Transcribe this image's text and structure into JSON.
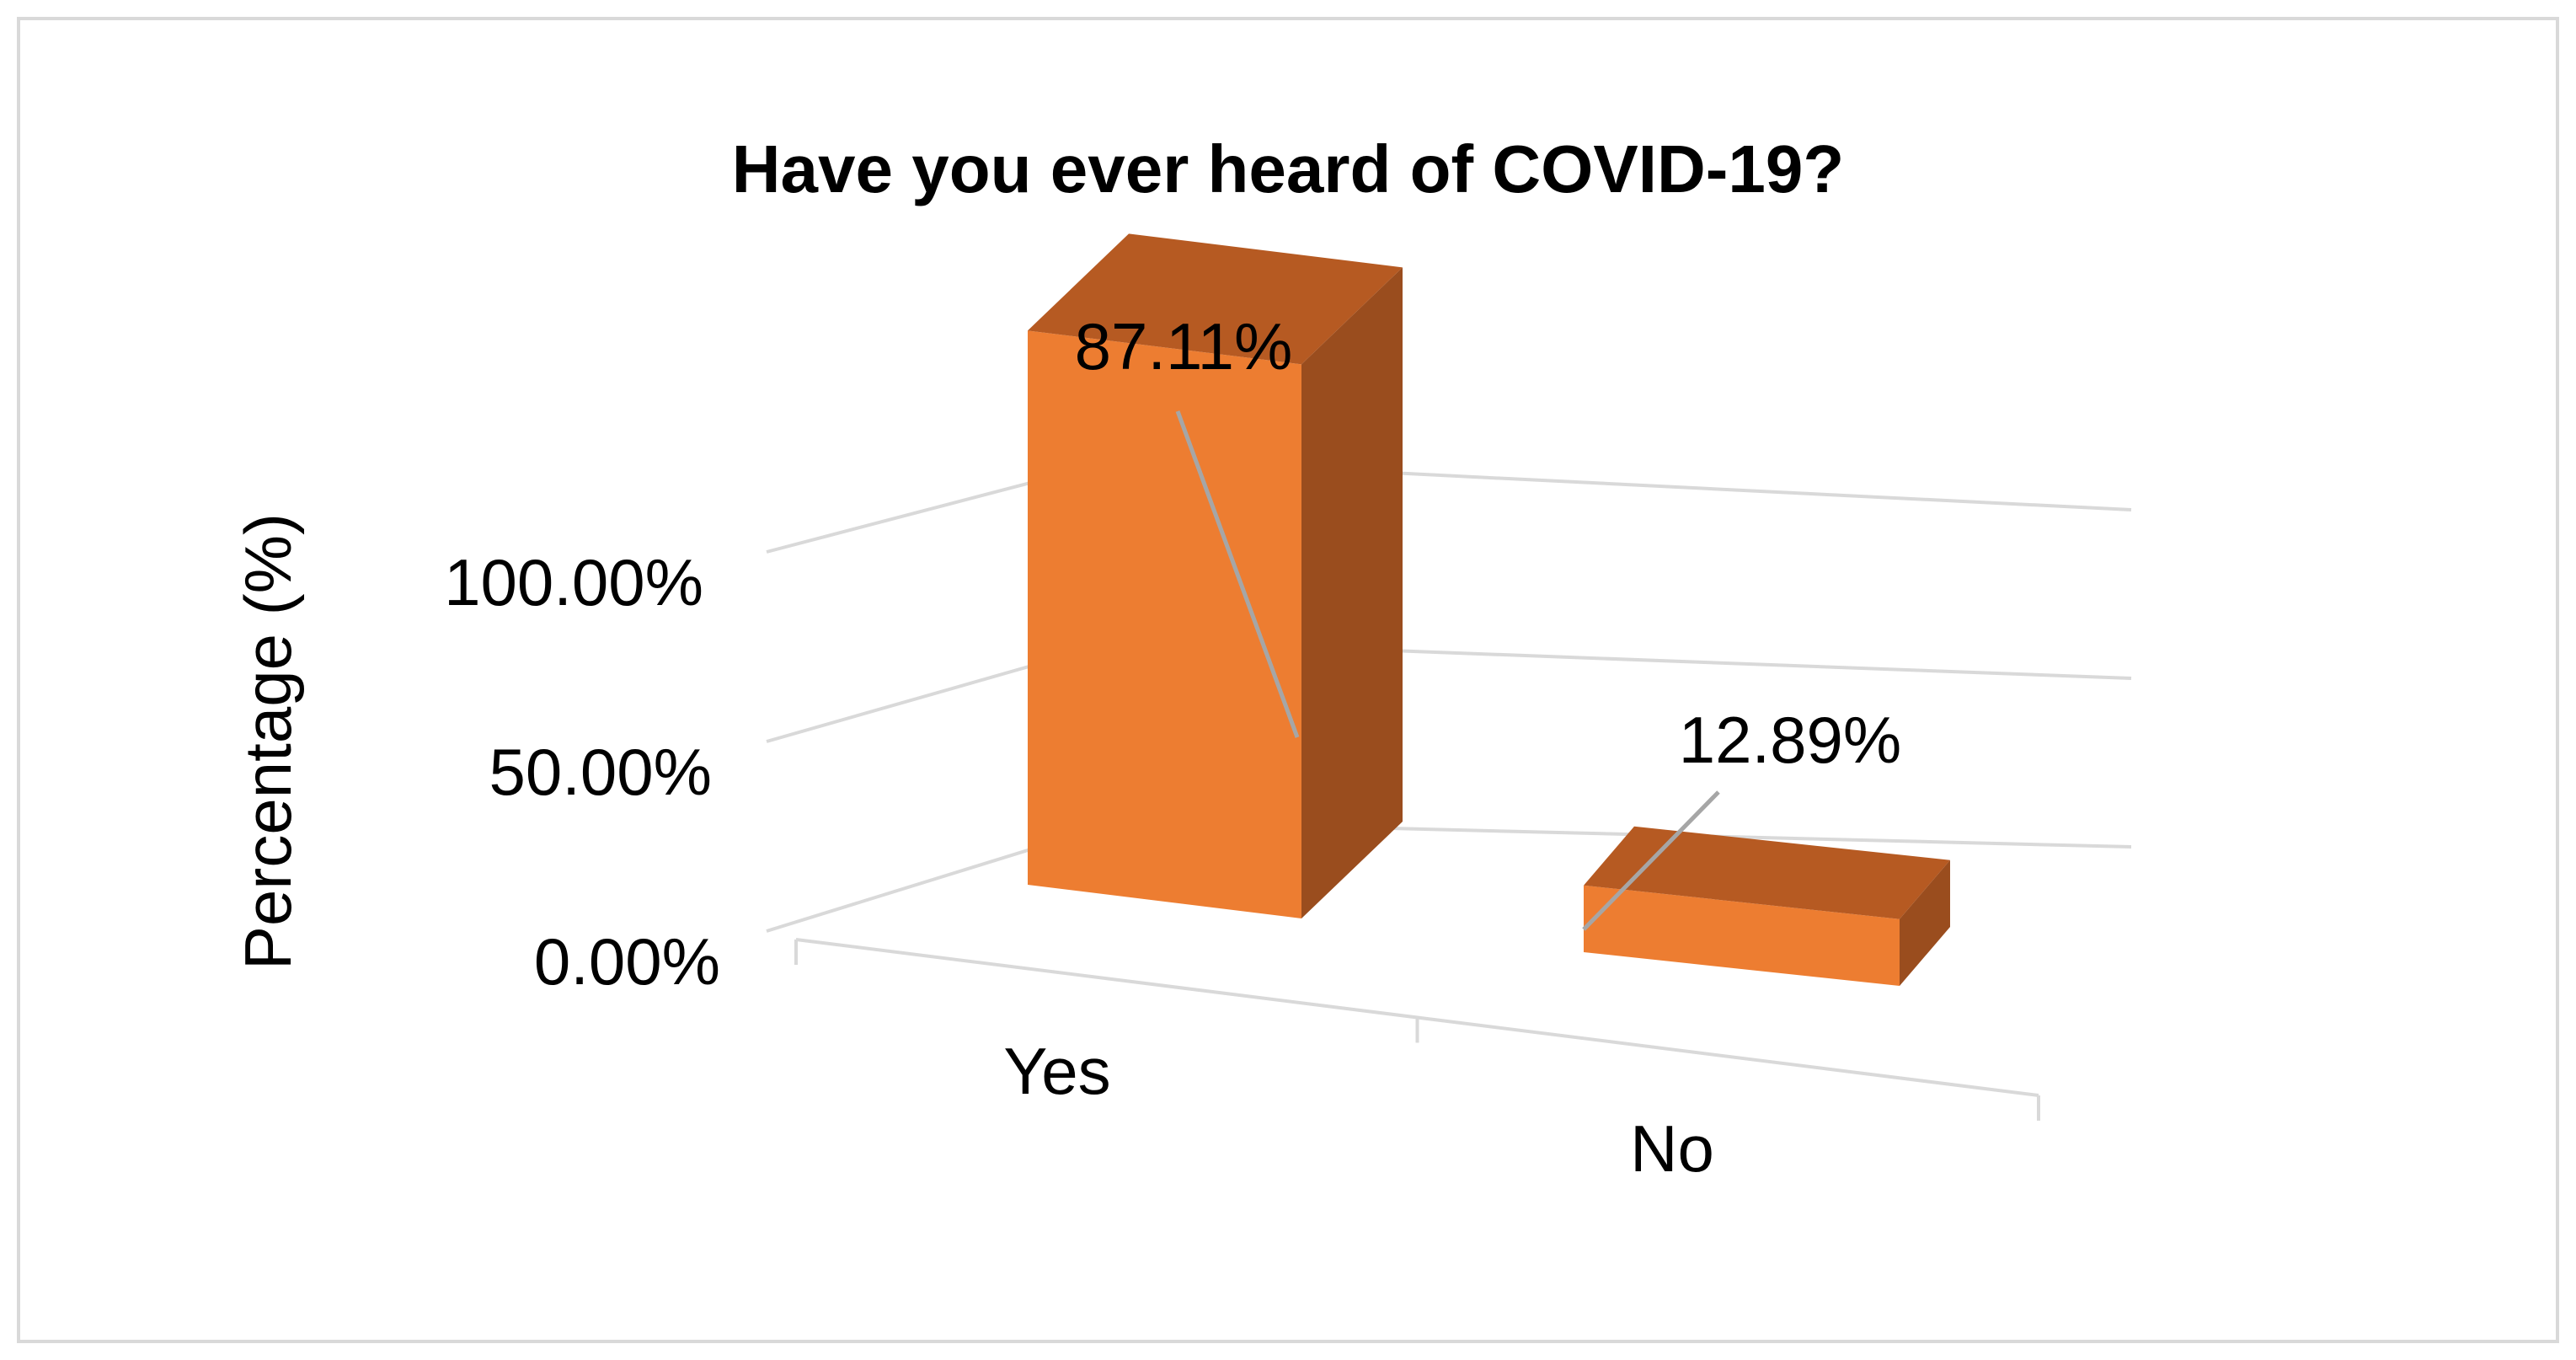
{
  "chart_data": {
    "type": "bar",
    "title": "Have you ever heard of COVID-19?",
    "xlabel": "",
    "ylabel": "Percentage (%)",
    "categories": [
      "Yes",
      "No"
    ],
    "values": [
      87.11,
      12.89
    ],
    "data_labels": [
      "87.11%",
      "12.89%"
    ],
    "yticks": [
      0,
      50,
      100
    ],
    "ytick_labels": [
      "0.00%",
      "50.00%",
      "100.00%"
    ],
    "ylim": [
      0,
      100
    ],
    "grid": true,
    "legend": "none",
    "style": "3d-column"
  },
  "colors": {
    "bar_front": "#ED7D31",
    "bar_top": "#B65A22",
    "bar_side": "#9A4D1E",
    "gridline": "#D9D9D9",
    "leader_line": "#A6A6A6",
    "frame": "#D9D9D9"
  }
}
